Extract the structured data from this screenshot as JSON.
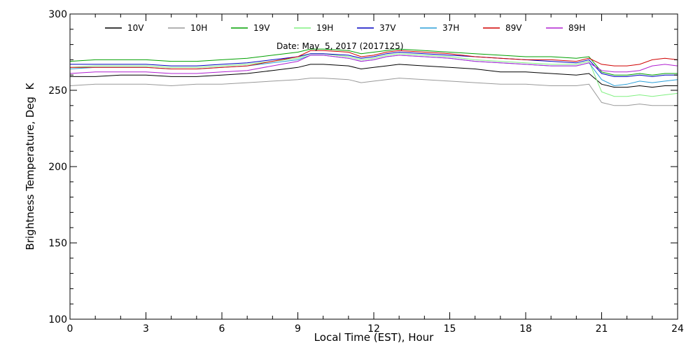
{
  "chart_data": {
    "type": "line",
    "title": "",
    "annotation": "Date: May  5, 2017 (2017125)",
    "xlabel": "Local Time (EST), Hour",
    "ylabel": "Brightness Temperature, Deg  K",
    "xlim": [
      0,
      24
    ],
    "ylim": [
      100,
      300
    ],
    "x_ticks": [
      0,
      3,
      6,
      9,
      12,
      15,
      18,
      21,
      24
    ],
    "y_ticks": [
      100,
      150,
      200,
      250,
      300
    ],
    "grid": false,
    "legend_position": "top",
    "x": [
      0,
      1,
      2,
      3,
      4,
      5,
      6,
      7,
      8,
      9,
      9.5,
      10,
      11,
      11.5,
      12,
      12.5,
      13,
      14,
      15,
      16,
      17,
      18,
      19,
      20,
      20.5,
      21,
      21.5,
      22,
      22.5,
      23,
      23.5,
      24
    ],
    "series": [
      {
        "name": "10V",
        "color": "#000000",
        "values": [
          259,
          259,
          260,
          260,
          259,
          259,
          260,
          261,
          263,
          265,
          267,
          267,
          266,
          264,
          265,
          266,
          267,
          266,
          265,
          264,
          262,
          262,
          261,
          260,
          261,
          254,
          252,
          252,
          253,
          252,
          253,
          253
        ]
      },
      {
        "name": "10H",
        "color": "#999999",
        "values": [
          253,
          254,
          254,
          254,
          253,
          254,
          254,
          255,
          256,
          257,
          258,
          258,
          257,
          255,
          256,
          257,
          258,
          257,
          256,
          255,
          254,
          254,
          253,
          253,
          254,
          242,
          240,
          240,
          241,
          240,
          240,
          240
        ]
      },
      {
        "name": "19V",
        "color": "#00a000",
        "values": [
          269,
          270,
          270,
          270,
          269,
          269,
          270,
          271,
          273,
          275,
          277,
          277,
          276,
          274,
          275,
          276,
          277,
          276,
          275,
          274,
          273,
          272,
          272,
          271,
          272,
          262,
          260,
          260,
          261,
          260,
          261,
          261
        ]
      },
      {
        "name": "19H",
        "color": "#80f080",
        "values": [
          265,
          266,
          266,
          266,
          265,
          265,
          266,
          267,
          269,
          271,
          274,
          274,
          272,
          270,
          271,
          273,
          274,
          273,
          272,
          270,
          269,
          268,
          267,
          267,
          269,
          249,
          246,
          246,
          247,
          246,
          247,
          248
        ]
      },
      {
        "name": "37V",
        "color": "#0000c0",
        "values": [
          267,
          267,
          267,
          267,
          266,
          266,
          267,
          268,
          270,
          272,
          274,
          274,
          273,
          271,
          272,
          274,
          275,
          274,
          273,
          272,
          271,
          270,
          269,
          268,
          270,
          261,
          259,
          259,
          260,
          259,
          260,
          260
        ]
      },
      {
        "name": "37H",
        "color": "#2a9fd8",
        "values": [
          264,
          265,
          265,
          265,
          264,
          264,
          265,
          266,
          268,
          270,
          273,
          273,
          271,
          269,
          270,
          272,
          273,
          272,
          271,
          269,
          268,
          267,
          266,
          266,
          268,
          257,
          253,
          254,
          256,
          255,
          256,
          257
        ]
      },
      {
        "name": "89V",
        "color": "#d00000",
        "values": [
          265,
          265,
          265,
          265,
          264,
          264,
          265,
          266,
          269,
          272,
          276,
          276,
          275,
          272,
          273,
          275,
          276,
          275,
          274,
          272,
          271,
          270,
          270,
          269,
          271,
          267,
          266,
          266,
          267,
          270,
          271,
          270
        ]
      },
      {
        "name": "89H",
        "color": "#b020d0",
        "values": [
          261,
          262,
          262,
          262,
          261,
          261,
          262,
          263,
          266,
          269,
          273,
          273,
          271,
          269,
          270,
          272,
          273,
          272,
          271,
          269,
          268,
          267,
          266,
          266,
          268,
          263,
          262,
          262,
          263,
          266,
          267,
          266
        ]
      }
    ]
  }
}
